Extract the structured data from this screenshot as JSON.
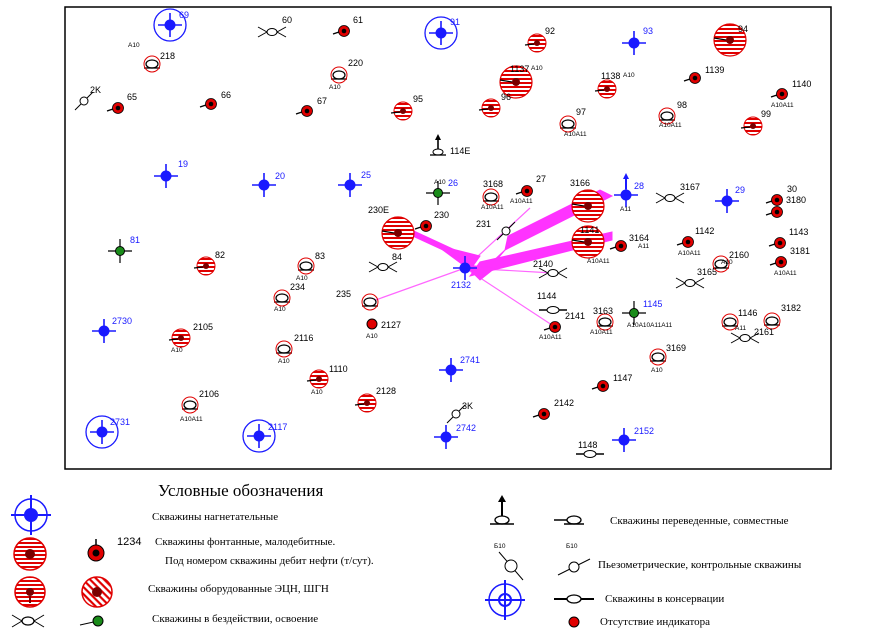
{
  "colors": {
    "injection": "#1a1aff",
    "flowing": "#e00000",
    "pump_fill": "#e00000",
    "arrow": "#ff33ff",
    "line": "#ff66ff",
    "frame": "#000000",
    "idle_green": "#1a8c1a"
  },
  "wells": [
    {
      "id": "69",
      "type": "injection-big",
      "labelColor": "blue"
    },
    {
      "id": "60",
      "type": "idle"
    },
    {
      "id": "61",
      "type": "flowing-small"
    },
    {
      "id": "91",
      "type": "injection-big",
      "labelColor": "blue"
    },
    {
      "id": "92",
      "type": "pump-small"
    },
    {
      "id": "93",
      "type": "injection",
      "labelColor": "blue"
    },
    {
      "id": "94",
      "type": "pump-big"
    },
    {
      "id": "218",
      "type": "transferred",
      "sub": "A10"
    },
    {
      "id": "220",
      "type": "transferred",
      "sub": "A10"
    },
    {
      "id": "1137",
      "type": "pump-big",
      "sub": "A10"
    },
    {
      "id": "1138",
      "type": "pump-small",
      "sub": "A10"
    },
    {
      "id": "1139",
      "type": "flowing-small"
    },
    {
      "id": "1140",
      "type": "flowing-small",
      "sub": "A10A11"
    },
    {
      "id": "2K",
      "type": "piezo"
    },
    {
      "id": "65",
      "type": "flowing-small"
    },
    {
      "id": "66",
      "type": "flowing-small"
    },
    {
      "id": "67",
      "type": "flowing-small"
    },
    {
      "id": "95",
      "type": "pump-small"
    },
    {
      "id": "96",
      "type": "pump-small"
    },
    {
      "id": "97",
      "type": "transferred",
      "sub": "A10A11"
    },
    {
      "id": "98",
      "type": "transferred",
      "sub": "A10A11"
    },
    {
      "id": "99",
      "type": "pump-small"
    },
    {
      "id": "114E",
      "type": "flowing-arrow",
      "sub": "A10"
    },
    {
      "id": "19",
      "type": "injection",
      "labelColor": "blue"
    },
    {
      "id": "20",
      "type": "injection",
      "labelColor": "blue"
    },
    {
      "id": "25",
      "type": "injection",
      "labelColor": "blue"
    },
    {
      "id": "26",
      "type": "idle-green",
      "labelColor": "blue"
    },
    {
      "id": "3168",
      "type": "transferred",
      "sub": "A10A11"
    },
    {
      "id": "27",
      "type": "flowing-small",
      "sub": "A10A11"
    },
    {
      "id": "3166",
      "type": "pump-big"
    },
    {
      "id": "28",
      "type": "injection-arrow",
      "labelColor": "blue",
      "sub": "A11"
    },
    {
      "id": "3167",
      "type": "idle"
    },
    {
      "id": "29",
      "type": "injection",
      "labelColor": "blue"
    },
    {
      "id": "30",
      "type": "flowing-small"
    },
    {
      "id": "3180",
      "type": "flowing-small"
    },
    {
      "id": "230E",
      "type": "pump-big"
    },
    {
      "id": "230",
      "type": "flowing-small"
    },
    {
      "id": "231",
      "type": "piezo"
    },
    {
      "id": "1141",
      "type": "pump-big",
      "sub": "A10A11"
    },
    {
      "id": "3164",
      "type": "flowing-small",
      "sub": "A11"
    },
    {
      "id": "1142",
      "type": "flowing-small",
      "sub": "A10A11"
    },
    {
      "id": "1143",
      "type": "flowing-small"
    },
    {
      "id": "3181",
      "type": "flowing-small",
      "sub": "A10A11"
    },
    {
      "id": "81",
      "type": "idle-green",
      "labelColor": "blue"
    },
    {
      "id": "82",
      "type": "pump-small"
    },
    {
      "id": "83",
      "type": "transferred",
      "sub": "A10"
    },
    {
      "id": "84",
      "type": "idle"
    },
    {
      "id": "2132",
      "type": "injection",
      "labelColor": "blue"
    },
    {
      "id": "2140",
      "type": "idle"
    },
    {
      "id": "3165",
      "type": "idle"
    },
    {
      "id": "2160",
      "type": "transferred",
      "sub": "A10"
    },
    {
      "id": "234",
      "type": "transferred",
      "sub": "A10"
    },
    {
      "id": "235",
      "type": "transferred"
    },
    {
      "id": "2127",
      "type": "no-indicator",
      "sub": "A10"
    },
    {
      "id": "1144",
      "type": "conserved"
    },
    {
      "id": "2141",
      "type": "flowing-small",
      "sub": "A10A11"
    },
    {
      "id": "3163",
      "type": "transferred",
      "sub": "A10A11"
    },
    {
      "id": "1145",
      "type": "idle-green",
      "labelColor": "blue",
      "sub": "A10A10A11A11"
    },
    {
      "id": "1146",
      "type": "transferred"
    },
    {
      "id": "3182",
      "type": "transferred"
    },
    {
      "id": "2161",
      "type": "idle",
      "sub": "A11"
    },
    {
      "id": "2730",
      "type": "injection",
      "labelColor": "blue"
    },
    {
      "id": "2105",
      "type": "pump-small",
      "sub": "A10"
    },
    {
      "id": "2116",
      "type": "transferred",
      "sub": "A10"
    },
    {
      "id": "3169",
      "type": "transferred",
      "sub": "A10"
    },
    {
      "id": "2741",
      "type": "injection",
      "labelColor": "blue"
    },
    {
      "id": "1110",
      "type": "pump-small",
      "sub": "A10"
    },
    {
      "id": "1147",
      "type": "flowing-small"
    },
    {
      "id": "2128",
      "type": "pump-small"
    },
    {
      "id": "2106",
      "type": "transferred",
      "sub": "A10A11"
    },
    {
      "id": "3K",
      "type": "piezo"
    },
    {
      "id": "2142",
      "type": "flowing-small"
    },
    {
      "id": "2731",
      "type": "injection-big",
      "labelColor": "blue"
    },
    {
      "id": "2117",
      "type": "injection-big",
      "labelColor": "blue"
    },
    {
      "id": "2742",
      "type": "injection",
      "labelColor": "blue"
    },
    {
      "id": "1148",
      "type": "conserved"
    },
    {
      "id": "2152",
      "type": "injection",
      "labelColor": "blue"
    }
  ],
  "legend": {
    "title": "Условные обозначения",
    "injection": "Скважины нагнетательные",
    "flowing_example_number": "1234",
    "flowing_line1": "Скважины фонтанные, малодебитные.",
    "flowing_line2": "Под номером скважины дебит нефти (т/сут).",
    "pumps": "Скважины оборудованные ЭЦН, ШГН",
    "idle": "Скважины в бездействии, освоение",
    "transferred_sub1": "Б10",
    "transferred_sub2": "Б10",
    "transferred": "Скважины переведенные, совместные",
    "piezo": "Пьезометрические, контрольные скважины",
    "conserved": "Скважины в консервации",
    "no_indicator": "Отсутствие индикатора"
  }
}
